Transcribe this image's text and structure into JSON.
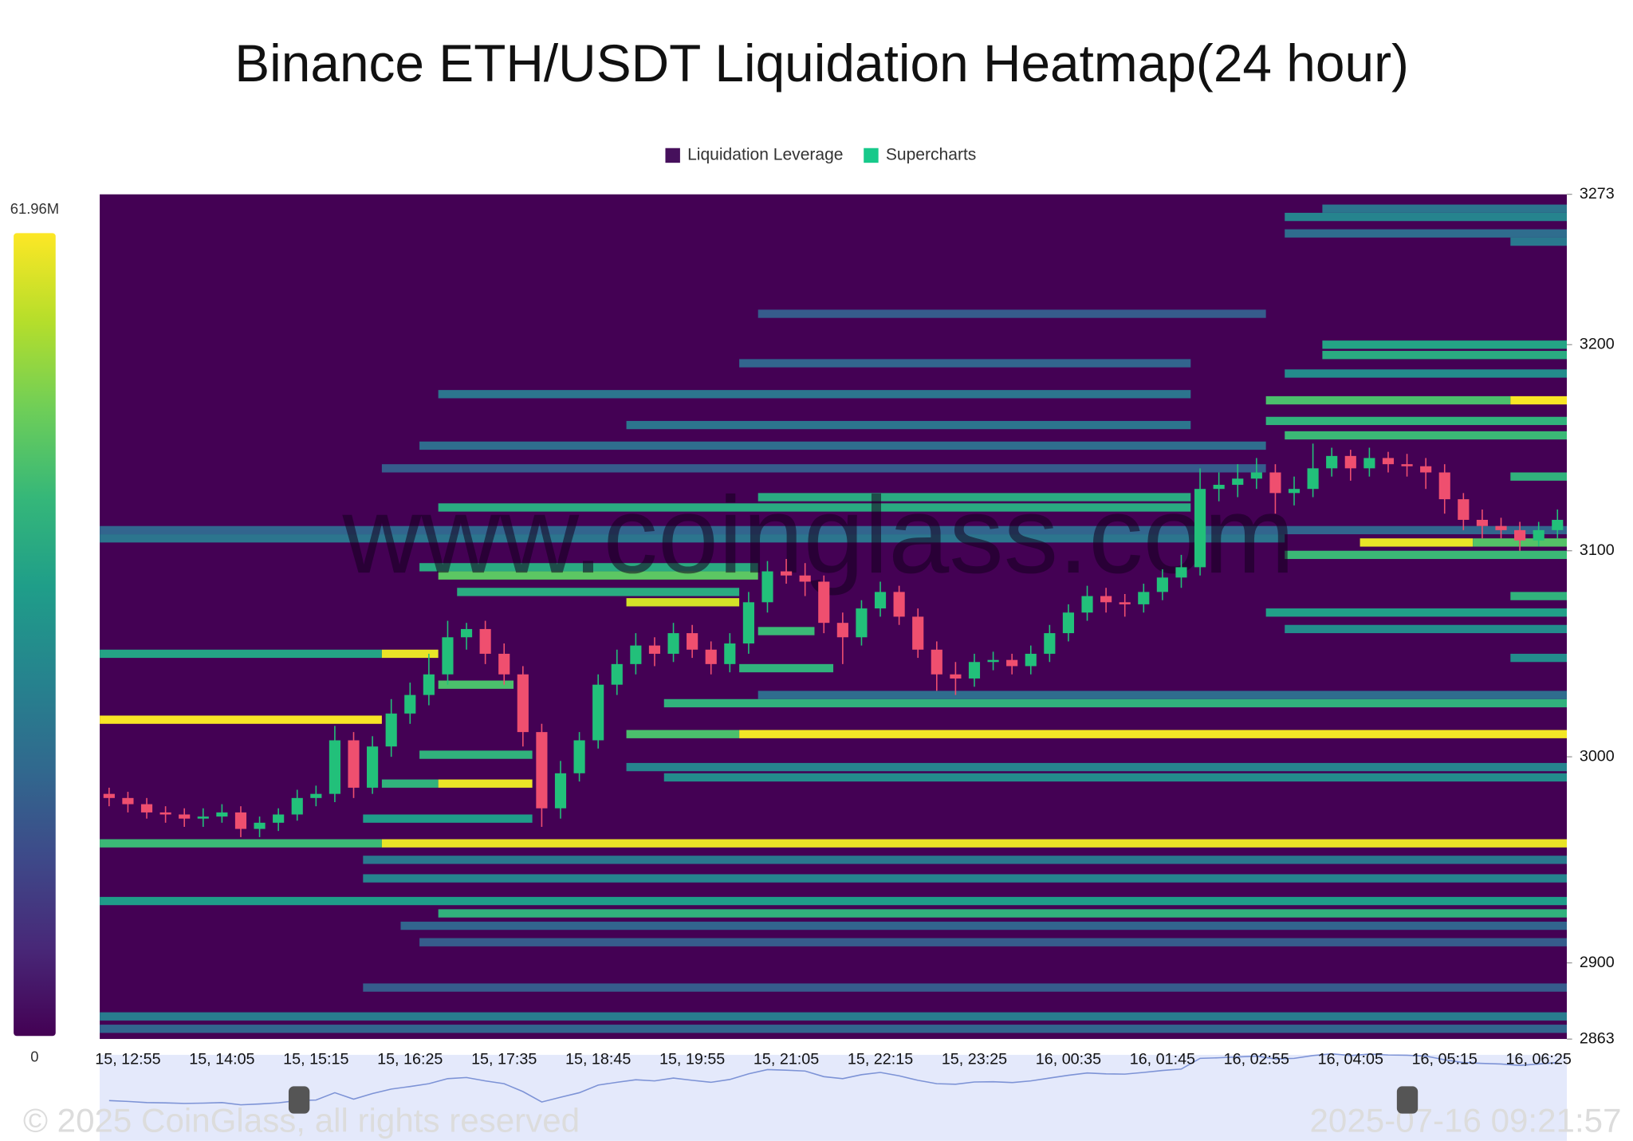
{
  "chart_data": {
    "type": "heatmap",
    "title": "Binance ETH/USDT Liquidation Heatmap(24 hour)",
    "watermark": "www.coinglass.com",
    "copyright": "© 2025 CoinGlass, all rights reserved",
    "timestamp": "2025-07-16 09:21:57",
    "series": [
      {
        "name": "Liquidation Leverage",
        "color": "#46105c"
      },
      {
        "name": "Supercharts",
        "color": "#17c98a"
      }
    ],
    "up_color": "#22c07a",
    "down_color": "#ef4f6f",
    "ylim": [
      2863,
      3273
    ],
    "yticks": [
      2863,
      2900,
      3000,
      3100,
      3200,
      3273
    ],
    "clim": [
      0,
      61.96
    ],
    "colorbar_ticks": [
      0,
      {
        "value": 61.96,
        "label": "61.96M"
      }
    ],
    "categories": [
      null,
      "15, 12:55",
      null,
      null,
      null,
      null,
      "15, 14:05",
      null,
      null,
      null,
      null,
      "15, 15:15",
      null,
      null,
      null,
      null,
      "15, 16:25",
      null,
      null,
      null,
      null,
      "15, 17:35",
      null,
      null,
      null,
      null,
      "15, 18:45",
      null,
      null,
      null,
      null,
      "15, 19:55",
      null,
      null,
      null,
      null,
      "15, 21:05",
      null,
      null,
      null,
      null,
      "15, 22:15",
      null,
      null,
      null,
      null,
      "15, 23:25",
      null,
      null,
      null,
      null,
      "16, 00:35",
      null,
      null,
      null,
      null,
      "16, 01:45",
      null,
      null,
      null,
      null,
      "16, 02:55",
      null,
      null,
      null,
      null,
      "16, 04:05",
      null,
      null,
      null,
      null,
      "16, 05:15",
      null,
      null,
      null,
      null,
      "16, 06:25",
      null
    ],
    "open": [
      2982,
      2980,
      2977,
      2973,
      2972,
      2970,
      2971,
      2973,
      2965,
      2968,
      2972,
      2980,
      2982,
      3008,
      2985,
      3005,
      3021,
      3030,
      3040,
      3058,
      3062,
      3050,
      3040,
      3012,
      2975,
      2992,
      3008,
      3035,
      3045,
      3054,
      3050,
      3060,
      3052,
      3045,
      3055,
      3075,
      3090,
      3088,
      3085,
      3065,
      3058,
      3072,
      3080,
      3068,
      3052,
      3040,
      3038,
      3046,
      3047,
      3044,
      3050,
      3060,
      3070,
      3078,
      3075,
      3074,
      3080,
      3087,
      3092,
      3130,
      3132,
      3135,
      3138,
      3128,
      3130,
      3140,
      3146,
      3140,
      3145,
      3142,
      3141,
      3138,
      3125,
      3115,
      3112,
      3110,
      3105,
      3110
    ],
    "high": [
      2985,
      2983,
      2980,
      2976,
      2975,
      2975,
      2977,
      2976,
      2971,
      2975,
      2984,
      2986,
      3015,
      3012,
      3010,
      3028,
      3036,
      3050,
      3066,
      3065,
      3066,
      3055,
      3044,
      3016,
      2998,
      3012,
      3040,
      3052,
      3060,
      3058,
      3065,
      3064,
      3056,
      3060,
      3080,
      3095,
      3096,
      3094,
      3088,
      3070,
      3076,
      3085,
      3083,
      3072,
      3056,
      3046,
      3050,
      3051,
      3050,
      3054,
      3064,
      3074,
      3083,
      3082,
      3079,
      3084,
      3091,
      3098,
      3140,
      3138,
      3142,
      3145,
      3142,
      3136,
      3152,
      3150,
      3149,
      3150,
      3148,
      3147,
      3145,
      3142,
      3128,
      3120,
      3116,
      3114,
      3114,
      3120
    ],
    "low": [
      2976,
      2973,
      2970,
      2968,
      2966,
      2966,
      2968,
      2961,
      2961,
      2964,
      2969,
      2976,
      2978,
      2980,
      2982,
      3000,
      3016,
      3025,
      3035,
      3052,
      3045,
      3035,
      3005,
      2966,
      2970,
      2988,
      3004,
      3030,
      3040,
      3044,
      3046,
      3048,
      3040,
      3041,
      3050,
      3070,
      3084,
      3078,
      3060,
      3045,
      3054,
      3068,
      3064,
      3048,
      3032,
      3030,
      3034,
      3042,
      3040,
      3040,
      3046,
      3056,
      3066,
      3070,
      3068,
      3070,
      3076,
      3082,
      3088,
      3124,
      3126,
      3130,
      3118,
      3122,
      3126,
      3136,
      3134,
      3136,
      3138,
      3136,
      3130,
      3118,
      3110,
      3106,
      3106,
      3100,
      3102,
      3106
    ],
    "close": [
      2980,
      2977,
      2973,
      2972,
      2970,
      2971,
      2973,
      2965,
      2968,
      2972,
      2980,
      2982,
      3008,
      2985,
      3005,
      3021,
      3030,
      3040,
      3058,
      3062,
      3050,
      3040,
      3012,
      2975,
      2992,
      3008,
      3035,
      3045,
      3054,
      3050,
      3060,
      3052,
      3045,
      3055,
      3075,
      3090,
      3088,
      3085,
      3065,
      3058,
      3072,
      3080,
      3068,
      3052,
      3040,
      3038,
      3046,
      3047,
      3044,
      3050,
      3060,
      3070,
      3078,
      3075,
      3074,
      3080,
      3087,
      3092,
      3130,
      3132,
      3135,
      3138,
      3128,
      3130,
      3140,
      3146,
      3140,
      3145,
      3142,
      3141,
      3138,
      3125,
      3115,
      3112,
      3110,
      3105,
      3110,
      3115
    ],
    "levels": [
      {
        "price": 3018,
        "start": 0,
        "end": 15,
        "value": 61.5
      },
      {
        "price": 2958,
        "start": 0,
        "end": 15,
        "value": 42
      },
      {
        "price": 2958,
        "start": 15,
        "end": 78,
        "value": 60
      },
      {
        "price": 3011,
        "start": 28,
        "end": 34,
        "value": 44
      },
      {
        "price": 3011,
        "start": 34,
        "end": 78,
        "value": 61
      },
      {
        "price": 3026,
        "start": 30,
        "end": 78,
        "value": 40
      },
      {
        "price": 2930,
        "start": 0,
        "end": 78,
        "value": 34
      },
      {
        "price": 2924,
        "start": 18,
        "end": 78,
        "value": 40
      },
      {
        "price": 2941,
        "start": 14,
        "end": 78,
        "value": 28
      },
      {
        "price": 3098,
        "start": 63,
        "end": 78,
        "value": 42
      },
      {
        "price": 3104,
        "start": 67,
        "end": 73,
        "value": 60
      },
      {
        "price": 3104,
        "start": 73,
        "end": 78,
        "value": 45
      },
      {
        "price": 3173,
        "start": 62,
        "end": 75,
        "value": 44
      },
      {
        "price": 3173,
        "start": 75,
        "end": 78,
        "value": 61.5
      },
      {
        "price": 3163,
        "start": 62,
        "end": 78,
        "value": 40
      },
      {
        "price": 3156,
        "start": 63,
        "end": 78,
        "value": 42
      },
      {
        "price": 3200,
        "start": 65,
        "end": 78,
        "value": 36
      },
      {
        "price": 3195,
        "start": 65,
        "end": 78,
        "value": 38
      },
      {
        "price": 3186,
        "start": 63,
        "end": 78,
        "value": 30
      },
      {
        "price": 3250,
        "start": 75,
        "end": 78,
        "value": 25
      },
      {
        "price": 3254,
        "start": 63,
        "end": 78,
        "value": 22
      },
      {
        "price": 3262,
        "start": 63,
        "end": 78,
        "value": 28
      },
      {
        "price": 3266,
        "start": 65,
        "end": 78,
        "value": 24
      },
      {
        "price": 3136,
        "start": 75,
        "end": 78,
        "value": 40
      },
      {
        "price": 3078,
        "start": 75,
        "end": 78,
        "value": 40
      },
      {
        "price": 3070,
        "start": 62,
        "end": 78,
        "value": 35
      },
      {
        "price": 3062,
        "start": 63,
        "end": 78,
        "value": 30
      },
      {
        "price": 3048,
        "start": 75,
        "end": 78,
        "value": 30
      },
      {
        "price": 3050,
        "start": 0,
        "end": 15,
        "value": 36
      },
      {
        "price": 3050,
        "start": 15,
        "end": 18,
        "value": 60
      },
      {
        "price": 3092,
        "start": 17,
        "end": 35,
        "value": 38
      },
      {
        "price": 3088,
        "start": 18,
        "end": 35,
        "value": 46
      },
      {
        "price": 3080,
        "start": 19,
        "end": 34,
        "value": 38
      },
      {
        "price": 3075,
        "start": 28,
        "end": 34,
        "value": 58
      },
      {
        "price": 3110,
        "start": 0,
        "end": 78,
        "value": 20
      },
      {
        "price": 3106,
        "start": 0,
        "end": 63,
        "value": 24
      },
      {
        "price": 3121,
        "start": 18,
        "end": 58,
        "value": 38
      },
      {
        "price": 3126,
        "start": 35,
        "end": 58,
        "value": 38
      },
      {
        "price": 2987,
        "start": 15,
        "end": 18,
        "value": 40
      },
      {
        "price": 2987,
        "start": 18,
        "end": 23,
        "value": 60
      },
      {
        "price": 2995,
        "start": 28,
        "end": 78,
        "value": 28
      },
      {
        "price": 3001,
        "start": 17,
        "end": 23,
        "value": 40
      },
      {
        "price": 2970,
        "start": 14,
        "end": 23,
        "value": 34
      },
      {
        "price": 2874,
        "start": 0,
        "end": 78,
        "value": 26
      },
      {
        "price": 2868,
        "start": 0,
        "end": 78,
        "value": 20
      },
      {
        "price": 3061,
        "start": 35,
        "end": 38,
        "value": 42
      },
      {
        "price": 3043,
        "start": 34,
        "end": 39,
        "value": 40
      },
      {
        "price": 3035,
        "start": 18,
        "end": 22,
        "value": 44
      },
      {
        "price": 3151,
        "start": 17,
        "end": 62,
        "value": 22
      },
      {
        "price": 3161,
        "start": 28,
        "end": 58,
        "value": 24
      },
      {
        "price": 3176,
        "start": 18,
        "end": 58,
        "value": 24
      },
      {
        "price": 3191,
        "start": 34,
        "end": 58,
        "value": 20
      },
      {
        "price": 3215,
        "start": 35,
        "end": 62,
        "value": 18
      },
      {
        "price": 2888,
        "start": 14,
        "end": 78,
        "value": 18
      },
      {
        "price": 2910,
        "start": 17,
        "end": 78,
        "value": 18
      },
      {
        "price": 2918,
        "start": 16,
        "end": 78,
        "value": 20
      },
      {
        "price": 2950,
        "start": 14,
        "end": 78,
        "value": 25
      },
      {
        "price": 2990,
        "start": 30,
        "end": 78,
        "value": 30
      },
      {
        "price": 3030,
        "start": 35,
        "end": 78,
        "value": 22
      },
      {
        "price": 3140,
        "start": 15,
        "end": 62,
        "value": 18
      }
    ]
  }
}
